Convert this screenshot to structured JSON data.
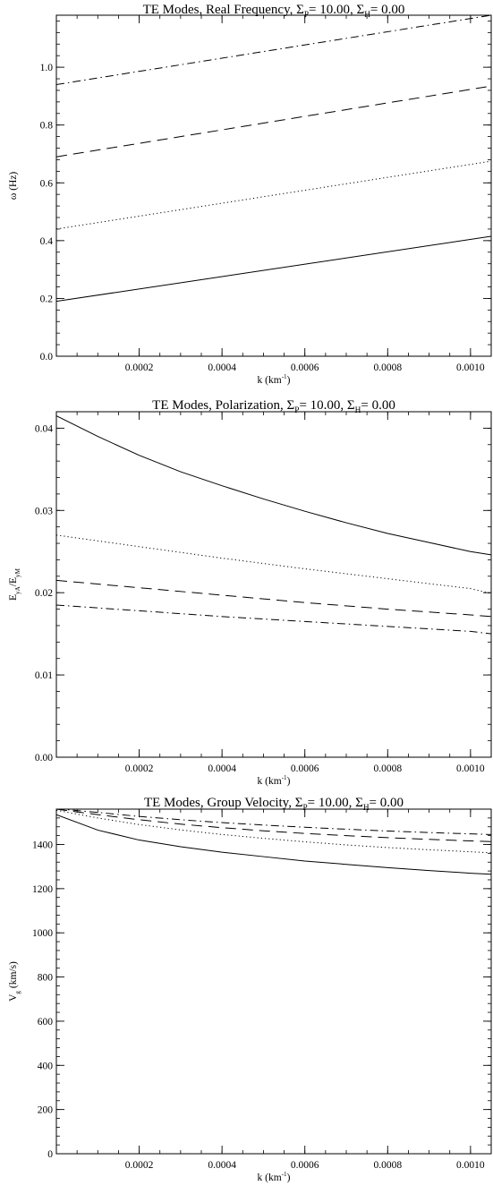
{
  "chart_data": [
    {
      "type": "line",
      "title": "TE Modes, Real Frequency, Σ<sub>P</sub>= 10.00, Σ<sub>H</sub>= 0.00",
      "title_parts": [
        "TE Modes, Real Frequency, Σ",
        "P",
        "= 10.00, Σ",
        "H",
        "=  0.00"
      ],
      "xlabel_parts": [
        "k (km",
        "-1",
        ")"
      ],
      "ylabel_parts": [
        "ω (Hz)"
      ],
      "xlim": [
        0.0,
        0.00105
      ],
      "ylim": [
        0.0,
        1.18
      ],
      "xticks": [
        0.0002,
        0.0004,
        0.0006,
        0.0008,
        0.001
      ],
      "xtick_labels": [
        "0.0002",
        "0.0004",
        "0.0006",
        "0.0008",
        "0.0010"
      ],
      "yticks": [
        0.0,
        0.2,
        0.4,
        0.6,
        0.8,
        1.0
      ],
      "ytick_labels": [
        "0.0",
        "0.2",
        "0.4",
        "0.6",
        "0.8",
        "1.0"
      ],
      "series": [
        {
          "dash": "solid",
          "x": [
            0.0,
            0.00105
          ],
          "y": [
            0.19,
            0.415
          ]
        },
        {
          "dash": "dotted",
          "x": [
            0.0,
            0.00105
          ],
          "y": [
            0.44,
            0.675
          ]
        },
        {
          "dash": "dashed",
          "x": [
            0.0,
            0.00105
          ],
          "y": [
            0.69,
            0.935
          ]
        },
        {
          "dash": "dashdot",
          "x": [
            0.0,
            0.00105
          ],
          "y": [
            0.94,
            1.18
          ]
        }
      ]
    },
    {
      "type": "line",
      "title_parts": [
        "TE Modes, Polarization, Σ",
        "P",
        "= 10.00, Σ",
        "H",
        "=  0.00"
      ],
      "xlabel_parts": [
        "k (km",
        "-1",
        ")"
      ],
      "ylabel_parts": [
        "E",
        "yA",
        "/E",
        "yM"
      ],
      "xlim": [
        0.0,
        0.00105
      ],
      "ylim": [
        0.0,
        0.042
      ],
      "xticks": [
        0.0002,
        0.0004,
        0.0006,
        0.0008,
        0.001
      ],
      "xtick_labels": [
        "0.0002",
        "0.0004",
        "0.0006",
        "0.0008",
        "0.0010"
      ],
      "yticks": [
        0.0,
        0.01,
        0.02,
        0.03,
        0.04
      ],
      "ytick_labels": [
        "0.00",
        "0.01",
        "0.02",
        "0.03",
        "0.04"
      ],
      "series": [
        {
          "dash": "solid",
          "x": [
            0.0,
            0.0001,
            0.0002,
            0.0003,
            0.0004,
            0.0005,
            0.0006,
            0.0007,
            0.0008,
            0.0009,
            0.001,
            0.00105
          ],
          "y": [
            0.0415,
            0.039,
            0.0367,
            0.0347,
            0.033,
            0.0314,
            0.0299,
            0.0285,
            0.0272,
            0.0261,
            0.025,
            0.0246
          ]
        },
        {
          "dash": "dotted",
          "x": [
            0.0,
            0.0002,
            0.0004,
            0.0006,
            0.0008,
            0.001,
            0.00105
          ],
          "y": [
            0.027,
            0.0256,
            0.0242,
            0.0229,
            0.0217,
            0.0205,
            0.0199
          ]
        },
        {
          "dash": "dashed",
          "x": [
            0.0,
            0.0002,
            0.0004,
            0.0006,
            0.0008,
            0.001,
            0.00105
          ],
          "y": [
            0.0215,
            0.0206,
            0.0197,
            0.0188,
            0.018,
            0.0173,
            0.0171
          ]
        },
        {
          "dash": "dashdot",
          "x": [
            0.0,
            0.0002,
            0.0004,
            0.0006,
            0.0008,
            0.001,
            0.00105
          ],
          "y": [
            0.0185,
            0.0178,
            0.0171,
            0.0165,
            0.0159,
            0.0153,
            0.015
          ]
        }
      ]
    },
    {
      "type": "line",
      "title_parts": [
        "TE Modes, Group Velocity, Σ",
        "P",
        "= 10.00, Σ",
        "H",
        "=  0.00"
      ],
      "xlabel_parts": [
        "k (km",
        "-1",
        ")"
      ],
      "ylabel_parts": [
        "V",
        "g",
        " (km/s)"
      ],
      "xlim": [
        0.0,
        0.00105
      ],
      "ylim": [
        0.0,
        1560.0
      ],
      "xticks": [
        0.0002,
        0.0004,
        0.0006,
        0.0008,
        0.001
      ],
      "xtick_labels": [
        "0.0002",
        "0.0004",
        "0.0006",
        "0.0008",
        "0.0010"
      ],
      "yticks": [
        0,
        200,
        400,
        600,
        800,
        1000,
        1200,
        1400
      ],
      "ytick_labels": [
        "0",
        "200",
        "400",
        "600",
        "800",
        "1000",
        "1200",
        "1400"
      ],
      "series": [
        {
          "dash": "solid",
          "x": [
            0.0,
            0.0001,
            0.0002,
            0.0003,
            0.0004,
            0.0005,
            0.0006,
            0.0007,
            0.0008,
            0.0009,
            0.001,
            0.00105
          ],
          "y": [
            1535,
            1465,
            1420,
            1390,
            1365,
            1345,
            1325,
            1310,
            1295,
            1282,
            1270,
            1265
          ]
        },
        {
          "dash": "dotted",
          "x": [
            0.0,
            0.0001,
            0.0002,
            0.0003,
            0.0004,
            0.0005,
            0.0006,
            0.0007,
            0.0008,
            0.0009,
            0.001,
            0.00105
          ],
          "y": [
            1555,
            1520,
            1490,
            1466,
            1445,
            1428,
            1412,
            1398,
            1386,
            1376,
            1367,
            1362
          ]
        },
        {
          "dash": "dashed",
          "x": [
            0.0,
            0.0001,
            0.0002,
            0.0003,
            0.0004,
            0.0005,
            0.0006,
            0.0007,
            0.0008,
            0.0009,
            0.001,
            0.00105
          ],
          "y": [
            1560,
            1535,
            1512,
            1492,
            1476,
            1462,
            1450,
            1440,
            1431,
            1423,
            1416,
            1413
          ]
        },
        {
          "dash": "dashdot",
          "x": [
            0.0,
            0.0001,
            0.0002,
            0.0003,
            0.0004,
            0.0005,
            0.0006,
            0.0007,
            0.0008,
            0.0009,
            0.001,
            0.00105
          ],
          "y": [
            1562,
            1545,
            1527,
            1512,
            1499,
            1488,
            1478,
            1469,
            1461,
            1454,
            1448,
            1445
          ]
        }
      ]
    }
  ]
}
